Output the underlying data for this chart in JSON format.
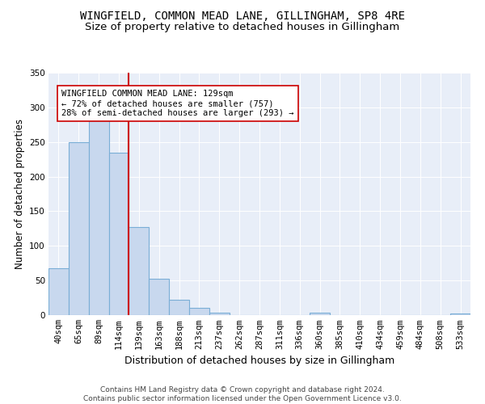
{
  "title1": "WINGFIELD, COMMON MEAD LANE, GILLINGHAM, SP8 4RE",
  "title2": "Size of property relative to detached houses in Gillingham",
  "xlabel": "Distribution of detached houses by size in Gillingham",
  "ylabel": "Number of detached properties",
  "categories": [
    "40sqm",
    "65sqm",
    "89sqm",
    "114sqm",
    "139sqm",
    "163sqm",
    "188sqm",
    "213sqm",
    "237sqm",
    "262sqm",
    "287sqm",
    "311sqm",
    "336sqm",
    "360sqm",
    "385sqm",
    "410sqm",
    "434sqm",
    "459sqm",
    "484sqm",
    "508sqm",
    "533sqm"
  ],
  "values": [
    68,
    250,
    290,
    235,
    127,
    53,
    22,
    10,
    4,
    0,
    0,
    0,
    0,
    3,
    0,
    0,
    0,
    0,
    0,
    0,
    2
  ],
  "bar_color": "#c8d8ee",
  "bar_edge_color": "#7aaed6",
  "vline_color": "#cc0000",
  "annotation_text": "WINGFIELD COMMON MEAD LANE: 129sqm\n← 72% of detached houses are smaller (757)\n28% of semi-detached houses are larger (293) →",
  "annotation_box_color": "#ffffff",
  "annotation_box_edge": "#cc0000",
  "ylim": [
    0,
    350
  ],
  "yticks": [
    0,
    50,
    100,
    150,
    200,
    250,
    300,
    350
  ],
  "background_color": "#e8eef8",
  "footer": "Contains HM Land Registry data © Crown copyright and database right 2024.\nContains public sector information licensed under the Open Government Licence v3.0.",
  "title1_fontsize": 10,
  "title2_fontsize": 9.5,
  "xlabel_fontsize": 9,
  "ylabel_fontsize": 8.5,
  "tick_fontsize": 7.5,
  "annotation_fontsize": 7.5,
  "footer_fontsize": 6.5
}
